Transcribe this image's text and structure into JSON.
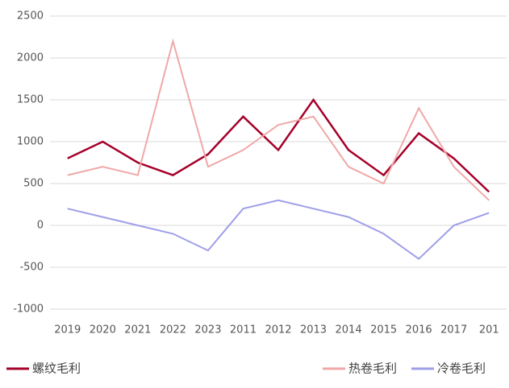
{
  "chart_data": {
    "type": "line",
    "categories": [
      "2019",
      "2020",
      "2021",
      "2022",
      "2023",
      "2011",
      "2012",
      "2013",
      "2014",
      "2015",
      "2016",
      "2017",
      "201"
    ],
    "series": [
      {
        "name": "螺纹毛利",
        "color": "#a5002a",
        "values": [
          800,
          1000,
          750,
          600,
          850,
          1300,
          900,
          1500,
          900,
          600,
          1100,
          800,
          400
        ]
      },
      {
        "name": "热卷毛利",
        "color": "#f0a8a8",
        "values": [
          600,
          700,
          600,
          2200,
          700,
          900,
          1200,
          1300,
          700,
          500,
          1400,
          700,
          300
        ]
      },
      {
        "name": "冷卷毛利",
        "color": "#9f9fe8",
        "values": [
          200,
          100,
          0,
          -100,
          -300,
          200,
          300,
          200,
          100,
          -100,
          -400,
          0,
          150
        ]
      }
    ],
    "ylim": [
      -1000,
      2500
    ],
    "yticks": [
      -1000,
      -500,
      0,
      500,
      1000,
      1500,
      2000,
      2500
    ],
    "grid": true
  }
}
